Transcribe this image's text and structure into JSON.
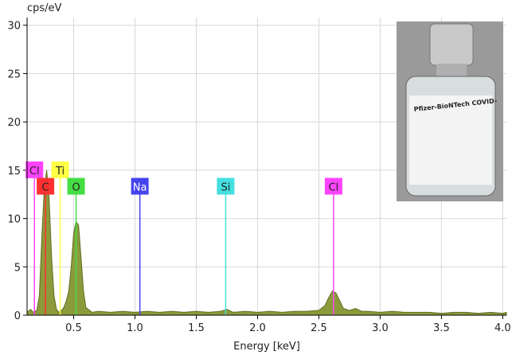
{
  "chart_data": {
    "type": "area",
    "y_label": "cps/eV",
    "x_label": "Energy [keV]",
    "xlim": [
      0.12,
      4.03
    ],
    "ylim": [
      0,
      30.8
    ],
    "xticks": [
      0.5,
      {
        "value": 1,
        "label": "1.0"
      },
      1.5,
      {
        "value": 2,
        "label": "2.0"
      },
      2.5,
      {
        "value": 3,
        "label": "3.0"
      },
      3.5,
      {
        "value": 4,
        "label": "4.0"
      }
    ],
    "yticks": [
      0,
      5,
      10,
      15,
      20,
      25,
      30
    ],
    "grid": true,
    "color": "#8c9a3c",
    "edge_color": "#5f6e22",
    "x": [
      0.12,
      0.15,
      0.17,
      0.2,
      0.22,
      0.24,
      0.26,
      0.28,
      0.3,
      0.32,
      0.34,
      0.36,
      0.38,
      0.4,
      0.42,
      0.44,
      0.46,
      0.48,
      0.5,
      0.52,
      0.54,
      0.56,
      0.58,
      0.6,
      0.65,
      0.7,
      0.8,
      0.9,
      1.0,
      1.1,
      1.2,
      1.3,
      1.4,
      1.5,
      1.6,
      1.7,
      1.75,
      1.8,
      1.9,
      2.0,
      2.1,
      2.2,
      2.3,
      2.4,
      2.5,
      2.55,
      2.58,
      2.61,
      2.64,
      2.67,
      2.7,
      2.75,
      2.8,
      2.85,
      2.9,
      3.0,
      3.1,
      3.2,
      3.3,
      3.4,
      3.5,
      3.6,
      3.7,
      3.8,
      3.9,
      4.0,
      4.03
    ],
    "values": [
      0.3,
      0.6,
      0.3,
      0.5,
      2,
      8,
      13,
      15,
      12,
      6,
      2,
      0.6,
      0.3,
      0.5,
      0.8,
      1.5,
      2.5,
      5,
      8.5,
      9.7,
      9.3,
      6,
      2.5,
      0.8,
      0.3,
      0.4,
      0.3,
      0.4,
      0.3,
      0.4,
      0.3,
      0.4,
      0.3,
      0.4,
      0.3,
      0.4,
      0.6,
      0.3,
      0.4,
      0.3,
      0.4,
      0.3,
      0.4,
      0.4,
      0.5,
      1.0,
      1.8,
      2.5,
      2.3,
      1.5,
      0.7,
      0.5,
      0.7,
      0.4,
      0.4,
      0.3,
      0.4,
      0.3,
      0.3,
      0.3,
      0.2,
      0.3,
      0.3,
      0.2,
      0.3,
      0.2,
      0.3
    ],
    "markers": [
      {
        "label": "Cl",
        "x": 0.18,
        "y": 15,
        "color": "#ff44ff",
        "text_color": "#222"
      },
      {
        "label": "C",
        "x": 0.27,
        "y": 13.3,
        "color": "#ff3030",
        "text_color": "#222"
      },
      {
        "label": "Ti",
        "x": 0.39,
        "y": 15,
        "color": "#ffff44",
        "text_color": "#222"
      },
      {
        "label": "O",
        "x": 0.52,
        "y": 13.3,
        "color": "#44dd44",
        "text_color": "#222"
      },
      {
        "label": "Na",
        "x": 1.04,
        "y": 13.3,
        "color": "#4444ee",
        "text_color": "#fff"
      },
      {
        "label": "Si",
        "x": 1.74,
        "y": 13.3,
        "color": "#44e0e0",
        "text_color": "#222"
      },
      {
        "label": "Cl",
        "x": 2.62,
        "y": 13.3,
        "color": "#ff44ff",
        "text_color": "#222"
      }
    ],
    "inset_label": "Pfizer-BioNTech COVID-"
  }
}
